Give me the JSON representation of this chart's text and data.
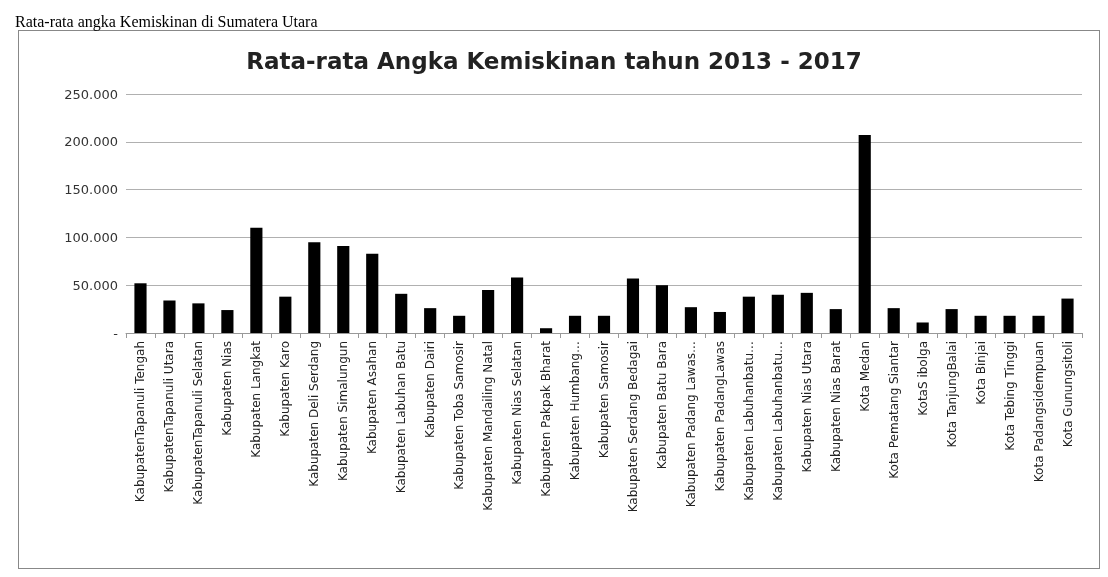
{
  "chart_data": {
    "type": "bar",
    "title": "Rata-rata Angka Kemiskinan tahun 2013 - 2017",
    "annotations": [
      "Rata-rata angka Kemiskinan di Sumatera Utara"
    ],
    "categories": [
      "KabupatenTapanuli Tengah",
      "KabupatenTapanuli Utara",
      "KabupatenTapanuli Selatan",
      "Kabupaten Nias",
      "Kabupaten Langkat",
      "Kabupaten Karo",
      "Kabupaten Deli Serdang",
      "Kabupaten Simalungun",
      "Kabupaten Asahan",
      "Kabupaten Labuhan Batu",
      "Kabupaten Dairi",
      "Kabupaten Toba Samosir",
      "Kabupaten Mandailing Natal",
      "Kabupaten Nias Selatan",
      "Kabupaten Pakpak Bharat",
      "Kabupaten Humbang…",
      "Kabupaten Samosir",
      "Kabupaten Serdang Bedagai",
      "Kabupaten Batu Bara",
      "Kabupaten Padang Lawas…",
      "Kabupaten PadangLawas",
      "Kabupaten Labuhanbatu…",
      "Kabupaten Labuhanbatu…",
      "Kabupaten Nias Utara",
      "Kabupaten Nias Barat",
      "Kota Medan",
      "Kota Pematang Siantar",
      "KotaS ibolga",
      "Kota TanjungBalai",
      "Kota Binjai",
      "Kota Tebing Tinggi",
      "Kota Padangsidempuan",
      "Kota Gunungsitoli"
    ],
    "values": [
      52000,
      34000,
      31000,
      24000,
      110000,
      38000,
      95000,
      91000,
      83000,
      41000,
      26000,
      18000,
      45000,
      58000,
      5000,
      18000,
      18000,
      57000,
      50000,
      27000,
      22000,
      38000,
      40000,
      42000,
      25000,
      207000,
      26000,
      11000,
      25000,
      18000,
      18000,
      18000,
      36000
    ],
    "color": "#000000",
    "ylim": [
      0,
      250000
    ],
    "yticks": [
      {
        "value": 0,
        "label": "-"
      },
      {
        "value": 50000,
        "label": "50.000"
      },
      {
        "value": 100000,
        "label": "100.000"
      },
      {
        "value": 150000,
        "label": "150.000"
      },
      {
        "value": 200000,
        "label": "200.000"
      },
      {
        "value": 250000,
        "label": "250.000"
      }
    ],
    "grid": "y"
  }
}
